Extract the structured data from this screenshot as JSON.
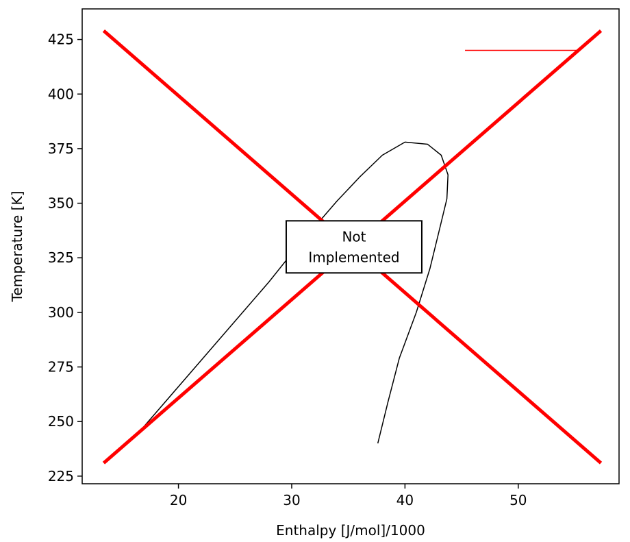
{
  "chart_data": {
    "type": "line",
    "title": "",
    "xlabel": "Enthalpy [J/mol]/1000",
    "ylabel": "Temperature [K]",
    "xlim": [
      11.5,
      58.9
    ],
    "ylim": [
      221.5,
      439.0
    ],
    "x_ticks": [
      20,
      30,
      40,
      50
    ],
    "y_ticks": [
      225,
      250,
      275,
      300,
      325,
      350,
      375,
      400,
      425
    ],
    "grid": false,
    "series": [
      {
        "color": "#000000",
        "line_width": 1.5,
        "points": [
          [
            16.0,
            242.0
          ],
          [
            18.0,
            254.0
          ],
          [
            20.0,
            266.0
          ],
          [
            22.0,
            278.0
          ],
          [
            24.0,
            290.0
          ],
          [
            26.0,
            302.0
          ],
          [
            28.0,
            314.0
          ],
          [
            30.0,
            327.0
          ],
          [
            32.0,
            339.0
          ],
          [
            34.0,
            351.0
          ],
          [
            36.0,
            362.0
          ],
          [
            38.0,
            372.0
          ],
          [
            40.0,
            378.0
          ],
          [
            42.0,
            377.0
          ],
          [
            43.2,
            372.0
          ],
          [
            43.8,
            363.0
          ],
          [
            43.7,
            352.0
          ],
          [
            43.0,
            337.0
          ],
          [
            42.2,
            320.0
          ],
          [
            41.0,
            300.0
          ],
          [
            39.5,
            279.0
          ],
          [
            38.5,
            259.0
          ],
          [
            37.6,
            240.0
          ]
        ]
      },
      {
        "color": "#ff0000",
        "line_width": 1.5,
        "points": [
          [
            45.3,
            420.0
          ],
          [
            55.2,
            420.0
          ]
        ]
      }
    ],
    "overlay_lines": [
      {
        "color": "#ff0000",
        "line_width": 5,
        "points": [
          [
            13.4,
            231.0
          ],
          [
            57.3,
            429.0
          ]
        ]
      },
      {
        "color": "#ff0000",
        "line_width": 5,
        "points": [
          [
            13.4,
            429.0
          ],
          [
            57.3,
            231.0
          ]
        ]
      }
    ],
    "annotation": {
      "lines": [
        "Not",
        "Implemented"
      ],
      "center": [
        35.5,
        330.0
      ],
      "box_color": "#000000",
      "fill": "#ffffff"
    }
  }
}
